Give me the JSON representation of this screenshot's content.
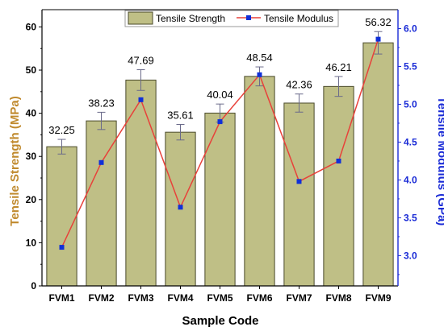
{
  "chart_data": {
    "type": "bar+line",
    "categories": [
      "FVM1",
      "FVM2",
      "FVM3",
      "FVM4",
      "FVM5",
      "FVM6",
      "FVM7",
      "FVM8",
      "FVM9"
    ],
    "xlabel": "Sample Code",
    "series": [
      {
        "name": "Tensile Strength",
        "kind": "bar",
        "axis": "left",
        "values": [
          32.25,
          38.23,
          47.69,
          35.61,
          40.04,
          48.54,
          42.36,
          46.21,
          56.32
        ],
        "error": [
          1.7,
          2.0,
          2.4,
          1.8,
          2.1,
          2.2,
          2.1,
          2.3,
          2.6
        ],
        "data_labels": [
          "32.25",
          "38.23",
          "47.69",
          "35.61",
          "40.04",
          "48.54",
          "42.36",
          "46.21",
          "56.32"
        ],
        "color": "#bfbf86",
        "edge_color": "#4a4a2a"
      },
      {
        "name": "Tensile Modulus",
        "kind": "line",
        "axis": "right",
        "values": [
          3.11,
          4.23,
          5.06,
          3.64,
          4.77,
          5.39,
          3.98,
          4.25,
          5.86
        ],
        "line_color": "#e8413a",
        "marker_color": "#1030d8"
      }
    ],
    "y_left": {
      "label": "Tensile Strength (MPa)",
      "ylim": [
        0,
        64
      ],
      "ticks": [
        0,
        10,
        20,
        30,
        40,
        50,
        60
      ],
      "color": "#c08a2e"
    },
    "y_right": {
      "label": "Tensile Modulus (GPa)",
      "ylim": [
        2.6,
        6.25
      ],
      "ticks": [
        3.0,
        3.5,
        4.0,
        4.5,
        5.0,
        5.5,
        6.0
      ],
      "tick_labels": [
        "3.0",
        "3.5",
        "4.0",
        "4.5",
        "5.0",
        "5.5",
        "6.0"
      ],
      "color": "#1a2bd6"
    },
    "legend": {
      "position": "top-center"
    },
    "grid": false
  }
}
